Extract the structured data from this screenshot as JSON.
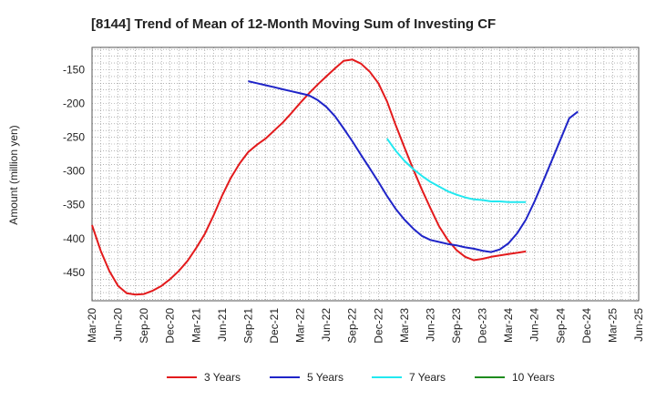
{
  "chart_data": {
    "type": "line",
    "title": "[8144]  Trend of Mean of 12-Month Moving Sum of Investing CF",
    "xlabel": "",
    "ylabel": "Amount (million yen)",
    "ylim": [
      -492,
      -117
    ],
    "yticks": [
      -150,
      -200,
      -250,
      -300,
      -350,
      -400,
      -450
    ],
    "ytick_labels": [
      "-150",
      "-200",
      "-250",
      "-300",
      "-350",
      "-400",
      "-450"
    ],
    "xticks": [
      "Mar-20",
      "Jun-20",
      "Sep-20",
      "Dec-20",
      "Mar-21",
      "Jun-21",
      "Sep-21",
      "Dec-21",
      "Mar-22",
      "Jun-22",
      "Sep-22",
      "Dec-22",
      "Mar-23",
      "Jun-23",
      "Sep-23",
      "Dec-23",
      "Mar-24",
      "Jun-24",
      "Sep-24",
      "Dec-24",
      "Mar-25",
      "Jun-25"
    ],
    "grid": true,
    "legend_position": "bottom",
    "series": [
      {
        "name": "3 Years",
        "color": "#e31a1c",
        "points": [
          [
            0,
            -380
          ],
          [
            1,
            -418
          ],
          [
            2,
            -448
          ],
          [
            3,
            -470
          ],
          [
            4,
            -481
          ],
          [
            5,
            -483
          ],
          [
            6,
            -482
          ],
          [
            7,
            -477
          ],
          [
            8,
            -470
          ],
          [
            9,
            -460
          ],
          [
            10,
            -448
          ],
          [
            11,
            -433
          ],
          [
            12,
            -414
          ],
          [
            13,
            -393
          ],
          [
            14,
            -366
          ],
          [
            15,
            -336
          ],
          [
            16,
            -310
          ],
          [
            17,
            -289
          ],
          [
            18,
            -272
          ],
          [
            19,
            -261
          ],
          [
            20,
            -252
          ],
          [
            21,
            -240
          ],
          [
            22,
            -228
          ],
          [
            23,
            -214
          ],
          [
            24,
            -199
          ],
          [
            25,
            -185
          ],
          [
            26,
            -172
          ],
          [
            27,
            -160
          ],
          [
            28,
            -148
          ],
          [
            29,
            -137
          ],
          [
            30,
            -135
          ],
          [
            31,
            -141
          ],
          [
            32,
            -153
          ],
          [
            33,
            -170
          ],
          [
            34,
            -197
          ],
          [
            35,
            -232
          ],
          [
            36,
            -265
          ],
          [
            37,
            -297
          ],
          [
            38,
            -327
          ],
          [
            39,
            -355
          ],
          [
            40,
            -382
          ],
          [
            41,
            -402
          ],
          [
            42,
            -417
          ],
          [
            43,
            -427
          ],
          [
            44,
            -432
          ],
          [
            45,
            -430
          ],
          [
            46,
            -427
          ],
          [
            47,
            -425
          ],
          [
            48,
            -423
          ],
          [
            49,
            -421
          ],
          [
            50,
            -419
          ]
        ]
      },
      {
        "name": "5 Years",
        "color": "#1f24c8",
        "points": [
          [
            18,
            -167
          ],
          [
            19,
            -170
          ],
          [
            20,
            -173
          ],
          [
            21,
            -176
          ],
          [
            22,
            -179
          ],
          [
            23,
            -182
          ],
          [
            24,
            -185
          ],
          [
            25,
            -188
          ],
          [
            26,
            -195
          ],
          [
            27,
            -205
          ],
          [
            28,
            -219
          ],
          [
            29,
            -237
          ],
          [
            30,
            -256
          ],
          [
            31,
            -276
          ],
          [
            32,
            -296
          ],
          [
            33,
            -316
          ],
          [
            34,
            -337
          ],
          [
            35,
            -356
          ],
          [
            36,
            -372
          ],
          [
            37,
            -385
          ],
          [
            38,
            -396
          ],
          [
            39,
            -402
          ],
          [
            40,
            -405
          ],
          [
            41,
            -408
          ],
          [
            42,
            -410
          ],
          [
            43,
            -413
          ],
          [
            44,
            -415
          ],
          [
            45,
            -418
          ],
          [
            46,
            -420
          ],
          [
            47,
            -416
          ],
          [
            48,
            -407
          ],
          [
            49,
            -392
          ],
          [
            50,
            -372
          ],
          [
            51,
            -345
          ],
          [
            52,
            -315
          ],
          [
            53,
            -284
          ],
          [
            54,
            -253
          ],
          [
            55,
            -222
          ],
          [
            56,
            -212
          ]
        ]
      },
      {
        "name": "7 Years",
        "color": "#22e8f0",
        "points": [
          [
            34,
            -252
          ],
          [
            35,
            -270
          ],
          [
            36,
            -285
          ],
          [
            37,
            -297
          ],
          [
            38,
            -307
          ],
          [
            39,
            -316
          ],
          [
            40,
            -323
          ],
          [
            41,
            -330
          ],
          [
            42,
            -335
          ],
          [
            43,
            -339
          ],
          [
            44,
            -342
          ],
          [
            45,
            -343
          ],
          [
            46,
            -345
          ],
          [
            47,
            -345
          ],
          [
            48,
            -346
          ],
          [
            49,
            -346
          ],
          [
            50,
            -346
          ]
        ]
      },
      {
        "name": "10 Years",
        "color": "#1e8c1e",
        "points": []
      }
    ]
  }
}
